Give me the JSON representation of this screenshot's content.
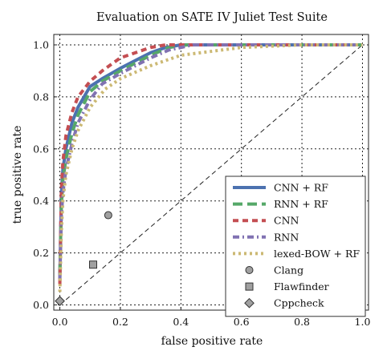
{
  "chart_data": {
    "type": "line",
    "title": "Evaluation on SATE IV Juliet Test Suite",
    "xlabel": "false positive rate",
    "ylabel": "true positive rate",
    "xlim": [
      -0.02,
      1.02
    ],
    "ylim": [
      -0.02,
      1.04
    ],
    "xticks": [
      0.0,
      0.2,
      0.4,
      0.6,
      0.8,
      1.0
    ],
    "yticks": [
      0.0,
      0.2,
      0.4,
      0.6,
      0.8,
      1.0
    ],
    "xtick_labels": [
      "0.0",
      "0.2",
      "0.4",
      "0.6",
      "0.8",
      "1.0"
    ],
    "ytick_labels": [
      "0.0",
      "0.2",
      "0.4",
      "0.6",
      "0.8",
      "1.0"
    ],
    "grid": true,
    "legend_position": "bottom-right",
    "series": [
      {
        "name": "CNN + RF",
        "kind": "line",
        "color": "#4c72b0",
        "dash": "solid",
        "points": [
          [
            0.0,
            0.1
          ],
          [
            0.005,
            0.42
          ],
          [
            0.01,
            0.52
          ],
          [
            0.02,
            0.6
          ],
          [
            0.04,
            0.7
          ],
          [
            0.06,
            0.76
          ],
          [
            0.1,
            0.84
          ],
          [
            0.14,
            0.87
          ],
          [
            0.2,
            0.91
          ],
          [
            0.25,
            0.94
          ],
          [
            0.3,
            0.97
          ],
          [
            0.35,
            0.99
          ],
          [
            0.4,
            1.0
          ],
          [
            1.0,
            1.0
          ]
        ]
      },
      {
        "name": "RNN + RF",
        "kind": "line",
        "color": "#55a868",
        "dash": "dashed",
        "points": [
          [
            0.0,
            0.12
          ],
          [
            0.005,
            0.38
          ],
          [
            0.01,
            0.48
          ],
          [
            0.02,
            0.56
          ],
          [
            0.04,
            0.66
          ],
          [
            0.06,
            0.73
          ],
          [
            0.1,
            0.82
          ],
          [
            0.14,
            0.86
          ],
          [
            0.2,
            0.9
          ],
          [
            0.25,
            0.93
          ],
          [
            0.3,
            0.96
          ],
          [
            0.36,
            0.99
          ],
          [
            0.42,
            1.0
          ],
          [
            1.0,
            1.0
          ]
        ]
      },
      {
        "name": "CNN",
        "kind": "line",
        "color": "#c44e52",
        "dash": "dashed-fine",
        "points": [
          [
            0.0,
            0.08
          ],
          [
            0.005,
            0.44
          ],
          [
            0.01,
            0.55
          ],
          [
            0.02,
            0.65
          ],
          [
            0.04,
            0.74
          ],
          [
            0.06,
            0.8
          ],
          [
            0.1,
            0.86
          ],
          [
            0.14,
            0.9
          ],
          [
            0.2,
            0.95
          ],
          [
            0.25,
            0.97
          ],
          [
            0.3,
            0.99
          ],
          [
            0.35,
            1.0
          ],
          [
            1.0,
            1.0
          ]
        ]
      },
      {
        "name": "RNN",
        "kind": "line",
        "color": "#8172b2",
        "dash": "dash-dot",
        "points": [
          [
            0.0,
            0.1
          ],
          [
            0.005,
            0.34
          ],
          [
            0.01,
            0.43
          ],
          [
            0.02,
            0.52
          ],
          [
            0.04,
            0.62
          ],
          [
            0.06,
            0.7
          ],
          [
            0.1,
            0.79
          ],
          [
            0.14,
            0.85
          ],
          [
            0.2,
            0.89
          ],
          [
            0.25,
            0.92
          ],
          [
            0.3,
            0.95
          ],
          [
            0.36,
            0.98
          ],
          [
            0.44,
            1.0
          ],
          [
            1.0,
            1.0
          ]
        ]
      },
      {
        "name": "lexed-BOW + RF",
        "kind": "line",
        "color": "#ccb974",
        "dash": "dotted",
        "points": [
          [
            0.0,
            0.05
          ],
          [
            0.005,
            0.28
          ],
          [
            0.01,
            0.4
          ],
          [
            0.02,
            0.5
          ],
          [
            0.04,
            0.6
          ],
          [
            0.06,
            0.67
          ],
          [
            0.1,
            0.76
          ],
          [
            0.15,
            0.83
          ],
          [
            0.2,
            0.87
          ],
          [
            0.3,
            0.92
          ],
          [
            0.4,
            0.96
          ],
          [
            0.6,
            0.99
          ],
          [
            0.8,
            1.0
          ],
          [
            1.0,
            1.0
          ]
        ]
      },
      {
        "name": "Clang",
        "kind": "marker",
        "marker": "circle",
        "color": "#a0a0a0",
        "points": [
          [
            0.16,
            0.345
          ]
        ]
      },
      {
        "name": "Flawfinder",
        "kind": "marker",
        "marker": "square",
        "color": "#a0a0a0",
        "points": [
          [
            0.11,
            0.155
          ]
        ]
      },
      {
        "name": "Cppcheck",
        "kind": "marker",
        "marker": "diamond",
        "color": "#a0a0a0",
        "points": [
          [
            0.0,
            0.015
          ]
        ]
      }
    ],
    "reference_line": {
      "color": "#222222",
      "dash": "dashed",
      "points": [
        [
          0.0,
          0.0
        ],
        [
          1.0,
          1.0
        ]
      ]
    }
  }
}
